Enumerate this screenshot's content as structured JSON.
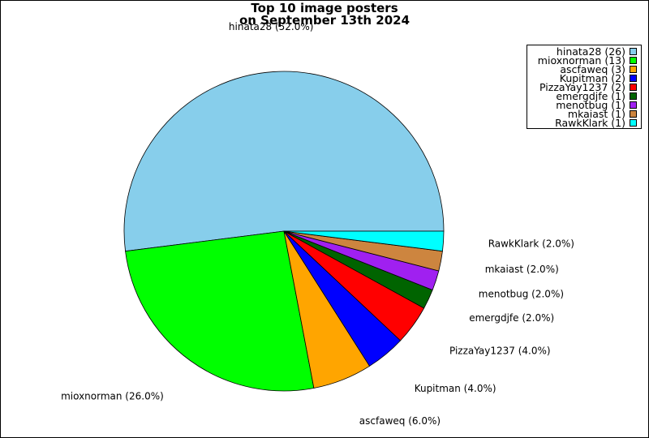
{
  "chart_data": {
    "type": "pie",
    "title_line1": "Top 10 image posters",
    "title_line2": "on September 13th 2024",
    "slices": [
      {
        "name": "hinata28",
        "count": 26,
        "percent": "52.0%",
        "color": "#87ceeb"
      },
      {
        "name": "mioxnorman",
        "count": 13,
        "percent": "26.0%",
        "color": "#00ff00"
      },
      {
        "name": "ascfaweq",
        "count": 3,
        "percent": "6.0%",
        "color": "#ffa500"
      },
      {
        "name": "Kupitman",
        "count": 2,
        "percent": "4.0%",
        "color": "#0000ff"
      },
      {
        "name": "PizzaYay1237",
        "count": 2,
        "percent": "4.0%",
        "color": "#ff0000"
      },
      {
        "name": "emergdjfe",
        "count": 1,
        "percent": "2.0%",
        "color": "#006400"
      },
      {
        "name": "menotbug",
        "count": 1,
        "percent": "2.0%",
        "color": "#a020f0"
      },
      {
        "name": "mkaiast",
        "count": 1,
        "percent": "2.0%",
        "color": "#cd853f"
      },
      {
        "name": "RawkKlark",
        "count": 1,
        "percent": "2.0%",
        "color": "#00ffff"
      }
    ],
    "slice_labels": [
      "hinata28 (52.0%)",
      "mioxnorman (26.0%)",
      "ascfaweq (6.0%)",
      "Kupitman (4.0%)",
      "PizzaYay1237 (4.0%)",
      "emergdjfe (2.0%)",
      "menotbug (2.0%)",
      "mkaiast (2.0%)",
      "RawkKlark (2.0%)"
    ],
    "legend_entries": [
      "hinata28 (26)",
      "mioxnorman (13)",
      "ascfaweq (3)",
      "Kupitman (2)",
      "PizzaYay1237 (2)",
      "emergdjfe (1)",
      "menotbug (1)",
      "mkaiast (1)",
      "RawkKlark (1)"
    ],
    "legend_position": "top-right"
  }
}
